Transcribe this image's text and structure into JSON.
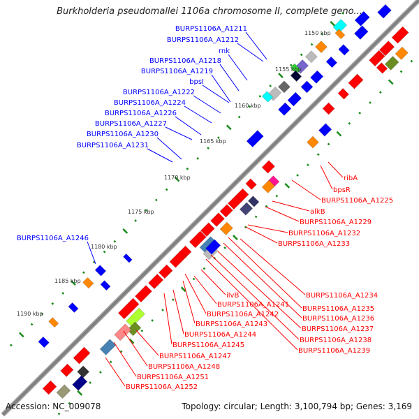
{
  "title": "Burkholderia pseudomallei 1106a chromosome II, complete geno...",
  "footer": {
    "accession": "Accession: NC_009078",
    "summary": "Topology: circular; Length: 3,100,794 bp; Genes: 3,169"
  },
  "ticks": [
    "1150 kbp",
    "1155 kbp",
    "1160 kbp",
    "1165 kbp",
    "1170 kbp",
    "1175 kbp",
    "1180 kbp",
    "1185 kbp",
    "1190 kbp"
  ],
  "colors": {
    "forward": "#ff0000",
    "reverse": "#0000ff",
    "backbone": "#808080",
    "tick": "#1a8a1a"
  },
  "reverse_labels": [
    "BURPS1106A_A1211",
    "BURPS1106A_A1212",
    "rnk",
    "BURPS1106A_A1218",
    "BURPS1106A_A1219",
    "bpsI",
    "BURPS1106A_A1222",
    "BURPS1106A_A1224",
    "BURPS1106A_A1226",
    "BURPS1106A_A1227",
    "BURPS1106A_A1230",
    "BURPS1106A_A1231",
    "BURPS1106A_A1246"
  ],
  "forward_labels": [
    "ribA",
    "bpsR",
    "BURPS1106A_A1225",
    "alkB",
    "BURPS1106A_A1229",
    "BURPS1106A_A1232",
    "BURPS1106A_A1233",
    "BURPS1106A_A1234",
    "BURPS1106A_A1235",
    "BURPS1106A_A1236",
    "BURPS1106A_A1237",
    "BURPS1106A_A1238",
    "BURPS1106A_A1239",
    "ilvB",
    "BURPS1106A_A1241",
    "BURPS1106A_A1242",
    "BURPS1106A_A1243",
    "BURPS1106A_A1244",
    "BURPS1106A_A1245",
    "BURPS1106A_A1247",
    "BURPS1106A_A1248",
    "BURPS1106A_A1251",
    "BURPS1106A_A1252"
  ]
}
